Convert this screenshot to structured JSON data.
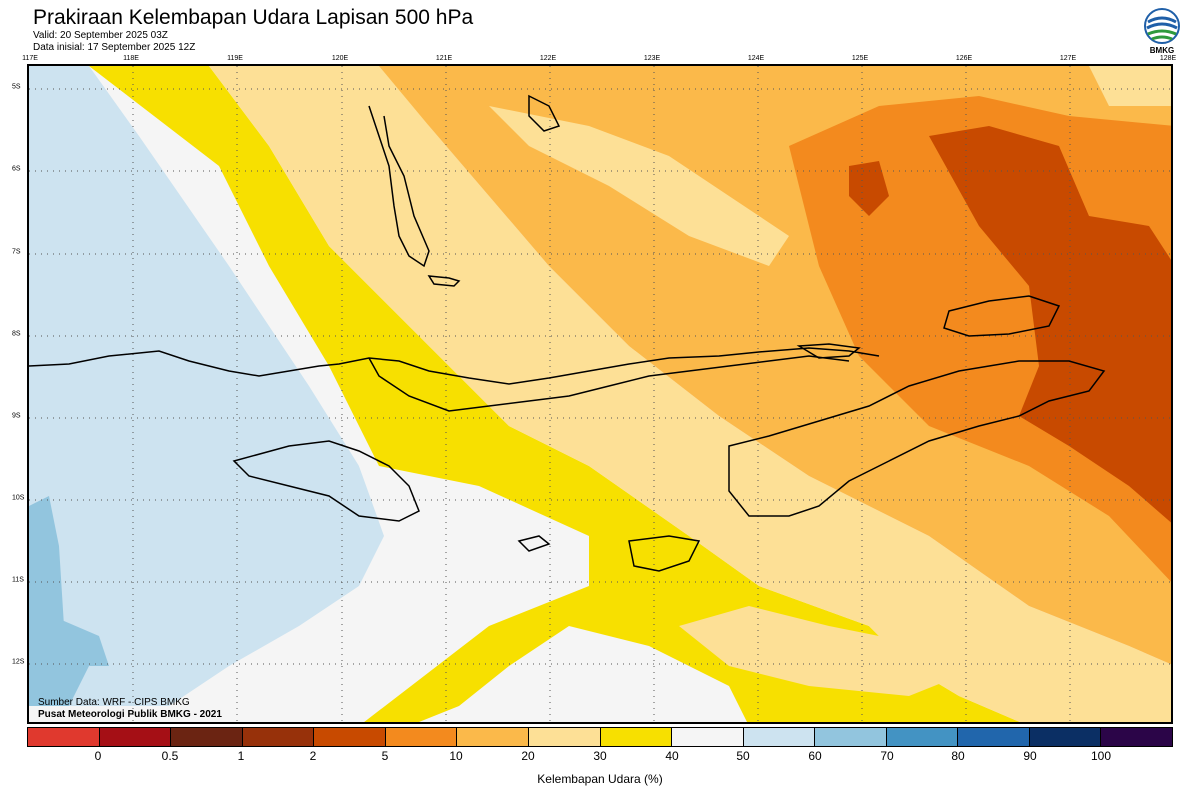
{
  "header": {
    "title": "Prakiraan Kelembapan Udara Lapisan 500 hPa",
    "valid": "Valid: 20 September 2025 03Z",
    "init": "Data inisial: 17 September 2025 12Z"
  },
  "logo": {
    "icon": "bmkg-logo-icon",
    "text": "BMKG"
  },
  "axes": {
    "lon_labels": [
      "117E",
      "118E",
      "119E",
      "120E",
      "121E",
      "122E",
      "123E",
      "124E",
      "125E",
      "126E",
      "127E",
      "128E"
    ],
    "lat_labels": [
      "5S",
      "6S",
      "7S",
      "8S",
      "9S",
      "10S",
      "11S",
      "12S"
    ]
  },
  "footer": {
    "source": "Sumber Data: WRF - CIPS BMKG",
    "center": "Pusat Meteorologi Publik BMKG - 2021"
  },
  "legend": {
    "colors": [
      "#e0392e",
      "#a50f15",
      "#6b2412",
      "#97310a",
      "#c84a00",
      "#f38a1e",
      "#fbb94a",
      "#fde096",
      "#f7e000",
      "#f5f5f5",
      "#cde3f0",
      "#92c5de",
      "#4393c3",
      "#2166ac",
      "#0b2f64",
      "#2b0548"
    ],
    "ticks": [
      "0",
      "0.5",
      "1",
      "2",
      "5",
      "10",
      "20",
      "30",
      "40",
      "50",
      "60",
      "70",
      "80",
      "90",
      "100"
    ],
    "label": "Kelembapan Udara (%)"
  }
}
